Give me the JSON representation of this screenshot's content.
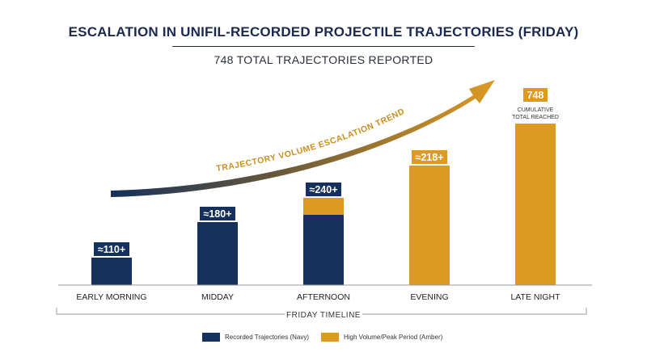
{
  "title": "ESCALATION IN UNIFIL-RECORDED PROJECTILE TRAJECTORIES (FRIDAY)",
  "subtitle": "748 TOTAL TRAJECTORIES REPORTED",
  "colors": {
    "navy": "#15305a",
    "amber": "#dc9a23",
    "text": "#1b2a4e"
  },
  "chart_data": {
    "type": "bar",
    "categories": [
      "EARLY MORNING",
      "MIDDAY",
      "AFTERNOON",
      "EVENING",
      "LATE NIGHT"
    ],
    "series": [
      {
        "name": "Recorded Trajectories (Navy)",
        "values": [
          110,
          180,
          240,
          0,
          0
        ]
      },
      {
        "name": "High Volume/Peak Period (Amber)",
        "values": [
          0,
          0,
          0,
          218,
          748
        ]
      }
    ],
    "data_labels": [
      "≈110+",
      "≈180+",
      "≈240+",
      "≈218+",
      "748"
    ],
    "annotations": {
      "late_night_note": [
        "CUMULATIVE",
        "TOTAL REACHED"
      ],
      "trend_label": "TRAJECTORY VOLUME ESCALATION TREND"
    },
    "xlabel": "FRIDAY TIMELINE",
    "legend_position": "bottom"
  }
}
